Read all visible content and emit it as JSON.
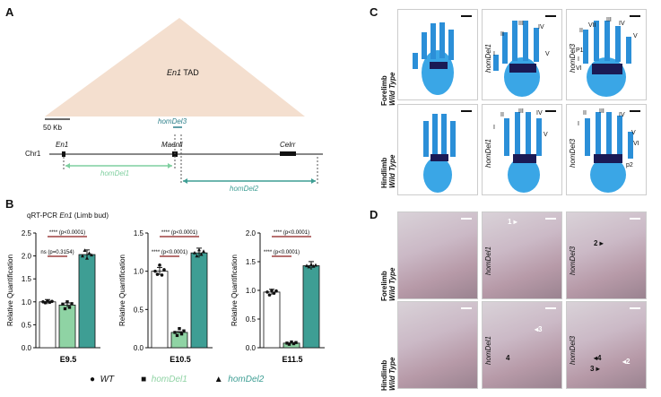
{
  "panels": {
    "A": {
      "label": "A",
      "tad_label_gene": "En1",
      "tad_label_suffix": "TAD",
      "scale": "50 Kb",
      "chrom": "Chr1",
      "genes": [
        "En1",
        "Maenli",
        "Celrr"
      ],
      "deletions": [
        "homDel3",
        "homDel1",
        "homDel2"
      ],
      "colors": {
        "tad": "#f4dfcf",
        "del1": "#7fcf9f",
        "del2": "#3e9e94",
        "del3": "#2c7f8a"
      }
    },
    "B": {
      "label": "B",
      "title_prefix": "qRT-PCR ",
      "title_gene": "En1",
      "title_suffix": " (Limb bud)",
      "ylabel": "Relative Quantification",
      "legend": [
        {
          "marker": "●",
          "name": "WT"
        },
        {
          "marker": "■",
          "name": "homDel1"
        },
        {
          "marker": "▲",
          "name": "homDel2"
        }
      ]
    },
    "C": {
      "label": "C",
      "rows": [
        {
          "bold": "Forelimb",
          "ital": "Wild Type"
        },
        {
          "bold": "Hindlimb",
          "ital": "Wild Type"
        }
      ],
      "cols": [
        "homDel1",
        "homDel3"
      ],
      "digits_fore_del1": [
        "II",
        "III",
        "IV",
        "I",
        "V"
      ],
      "digits_fore_del3": [
        "II",
        "VII",
        "III",
        "IV",
        "V",
        "P1",
        "I",
        "VI"
      ],
      "digits_hind_del1": [
        "II",
        "III",
        "IV",
        "I",
        "V"
      ],
      "digits_hind_del3": [
        "II",
        "III",
        "IV",
        "I",
        "V",
        "VI",
        "p2"
      ]
    },
    "D": {
      "label": "D",
      "rows": [
        {
          "bold": "Forelimb",
          "ital": "Wild Type"
        },
        {
          "bold": "Hindlimb",
          "ital": "Wild Type"
        }
      ],
      "cols": [
        "homDel1",
        "homDel3"
      ],
      "arrows": [
        "1",
        "2",
        "3",
        "4",
        "3",
        "4",
        "2"
      ]
    }
  },
  "chart_data": [
    {
      "type": "bar",
      "xlabel": "E9.5",
      "ylabel": "Relative Quantification",
      "ylim": [
        0,
        2.5
      ],
      "yticks": [
        "0.0",
        "0.5",
        "1.0",
        "1.5",
        "2.0",
        "2.5"
      ],
      "categories": [
        "WT",
        "homDel1",
        "homDel2"
      ],
      "values": [
        1.0,
        0.93,
        2.03
      ],
      "colors": [
        "#ffffff",
        "#8fd3a4",
        "#3e9e94"
      ],
      "points": [
        [
          1.0,
          0.98,
          1.02,
          0.99,
          1.01
        ],
        [
          0.95,
          0.85,
          1.0,
          0.88,
          0.96
        ],
        [
          2.0,
          2.12,
          1.95,
          2.06,
          2.02
        ]
      ],
      "comparisons": [
        {
          "label": "****",
          "p": "(p<0.0001)",
          "from": 0,
          "to": 2
        },
        {
          "label": "ns",
          "p": "(p=0.3154)",
          "from": 0,
          "to": 1
        }
      ]
    },
    {
      "type": "bar",
      "xlabel": "E10.5",
      "ylabel": "Relative Quantification",
      "ylim": [
        0,
        1.5
      ],
      "yticks": [
        "0.0",
        "0.5",
        "1.0",
        "1.5"
      ],
      "categories": [
        "WT",
        "homDel1",
        "homDel2"
      ],
      "values": [
        1.0,
        0.2,
        1.24
      ],
      "colors": [
        "#ffffff",
        "#8fd3a4",
        "#3e9e94"
      ],
      "points": [
        [
          1.0,
          0.96,
          1.08,
          0.95,
          1.02
        ],
        [
          0.2,
          0.16,
          0.25,
          0.18,
          0.22
        ],
        [
          1.24,
          1.2,
          1.28,
          1.22,
          1.26
        ]
      ],
      "comparisons": [
        {
          "label": "****",
          "p": "(p<0.0001)",
          "from": 0,
          "to": 2
        },
        {
          "label": "****",
          "p": "(p<0.0001)",
          "from": 0,
          "to": 1
        }
      ]
    },
    {
      "type": "bar",
      "xlabel": "E11.5",
      "ylabel": "Relative Quantification",
      "ylim": [
        0,
        2.0
      ],
      "yticks": [
        "0.0",
        "0.5",
        "1.0",
        "1.5",
        "2.0"
      ],
      "categories": [
        "WT",
        "homDel1",
        "homDel2"
      ],
      "values": [
        0.97,
        0.08,
        1.43
      ],
      "colors": [
        "#ffffff",
        "#8fd3a4",
        "#3e9e94"
      ],
      "points": [
        [
          0.97,
          0.92,
          1.0,
          0.95,
          0.99
        ],
        [
          0.08,
          0.06,
          0.1,
          0.07,
          0.09
        ],
        [
          1.43,
          1.41,
          1.45,
          1.42,
          1.44
        ]
      ],
      "comparisons": [
        {
          "label": "****",
          "p": "(p<0.0001)",
          "from": 0,
          "to": 2
        },
        {
          "label": "****",
          "p": "(p<0.0001)",
          "from": 0,
          "to": 1
        }
      ]
    }
  ]
}
